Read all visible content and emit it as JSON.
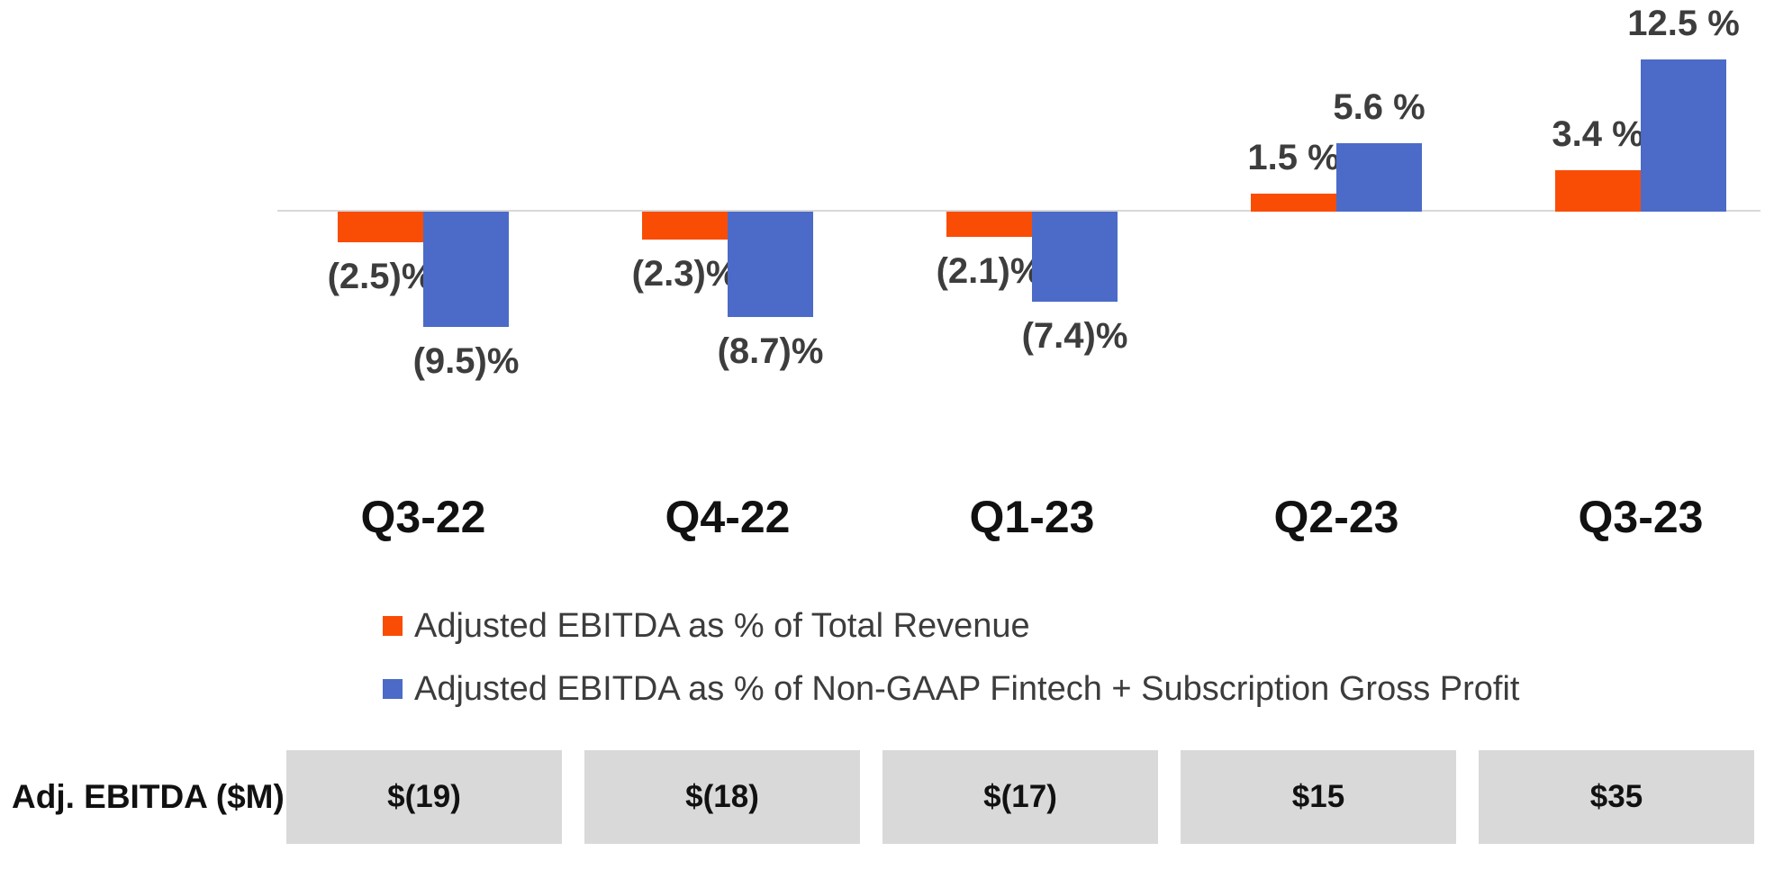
{
  "chart_data": {
    "type": "bar",
    "title": "",
    "xlabel": "",
    "ylabel": "",
    "categories": [
      "Q3-22",
      "Q4-22",
      "Q1-23",
      "Q2-23",
      "Q3-23"
    ],
    "series": [
      {
        "name": "Adjusted EBITDA as % of Total Revenue",
        "color": "#F94D05",
        "values": [
          -2.5,
          -2.3,
          -2.1,
          1.5,
          3.4
        ],
        "labels": [
          "(2.5)%",
          "(2.3)%",
          "(2.1)%",
          "1.5 %",
          "3.4 %"
        ]
      },
      {
        "name": "Adjusted EBITDA as % of Non-GAAP Fintech + Subscription Gross Profit",
        "color": "#4C6BC8",
        "values": [
          -9.5,
          -8.7,
          -7.4,
          5.6,
          12.5
        ],
        "labels": [
          "(9.5)%",
          "(8.7)%",
          "(7.4)%",
          "5.6 %",
          "12.5 %"
        ]
      }
    ],
    "ylim": [
      -10.5,
      13.5
    ],
    "grid": false,
    "legend_position": "bottom-left",
    "baseline_color": "#D8D8D8",
    "value_label_color": "#3D3D3D"
  },
  "table": {
    "row_label": "Adj. EBITDA ($M)",
    "values": [
      "$(19)",
      "$(18)",
      "$(17)",
      "$15",
      "$35"
    ],
    "cell_background": "#D9D9D9"
  }
}
